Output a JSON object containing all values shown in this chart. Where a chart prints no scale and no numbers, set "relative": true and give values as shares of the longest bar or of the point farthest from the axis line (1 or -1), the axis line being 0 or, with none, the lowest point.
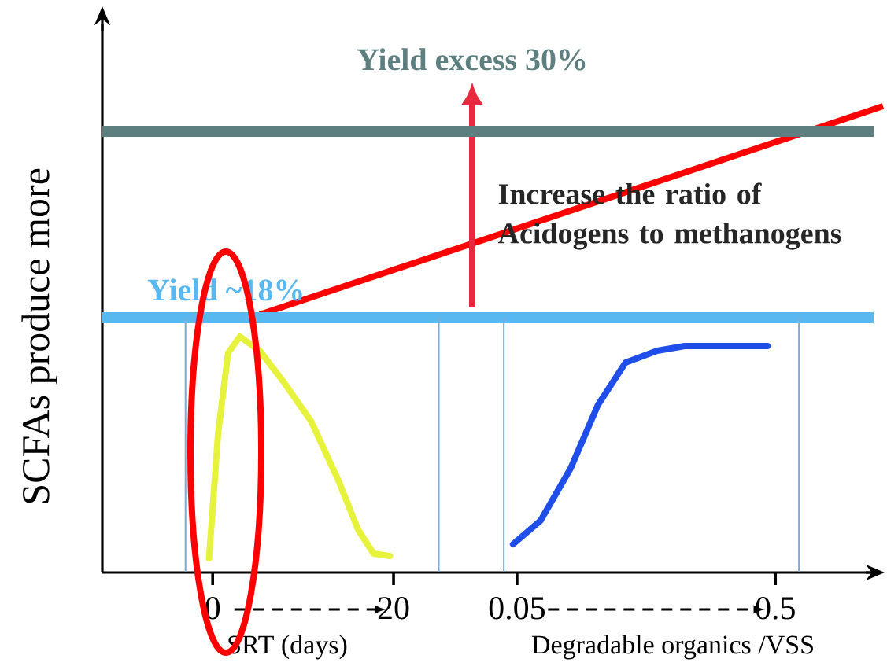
{
  "chart_data": [
    {
      "type": "line",
      "relative": true,
      "ylabel": "SCFAs produce more",
      "xlabel": "SRT (days)",
      "xlim": [
        -12.2,
        28.7
      ],
      "xticks": [
        0,
        20
      ],
      "series": [
        {
          "color": "#e6f23c",
          "x": [
            -0.4,
            0.6,
            1.7,
            3.0,
            5.2,
            7.8,
            10.9,
            13.9,
            16.1,
            17.8,
            19.6
          ],
          "values": [
            0.06,
            0.59,
            0.93,
            1.0,
            0.94,
            0.81,
            0.64,
            0.39,
            0.18,
            0.08,
            0.07
          ]
        }
      ],
      "ref_lines": [
        {
          "axis": "y",
          "value": 1.87,
          "label": "Yield excess 30%",
          "color": "#5e7f7f"
        },
        {
          "axis": "y",
          "value": 1.08,
          "label": "Yield ~18%",
          "color": "#5ab8f0"
        },
        {
          "axis": "x",
          "value": -3,
          "color": "#7aaad8"
        },
        {
          "axis": "x",
          "value": 25,
          "color": "#7aaad8"
        }
      ]
    },
    {
      "type": "line",
      "relative": true,
      "xlabel": "Degradable organics /VSS",
      "xlim": [
        -0.028,
        0.671
      ],
      "xticks": [
        0.05,
        0.5
      ],
      "series": [
        {
          "color": "#1f4fe8",
          "x": [
            0.043,
            0.091,
            0.143,
            0.191,
            0.239,
            0.294,
            0.342,
            0.486
          ],
          "values": [
            0.125,
            0.229,
            0.458,
            0.74,
            0.927,
            0.979,
            1.0,
            1.0
          ]
        }
      ],
      "ref_lines": [
        {
          "axis": "x",
          "value": 0.027,
          "color": "#7aaad8"
        },
        {
          "axis": "x",
          "value": 0.541,
          "color": "#7aaad8"
        }
      ],
      "annotations": [
        "Increase the ratio of Acidogens to methanogens"
      ]
    }
  ]
}
